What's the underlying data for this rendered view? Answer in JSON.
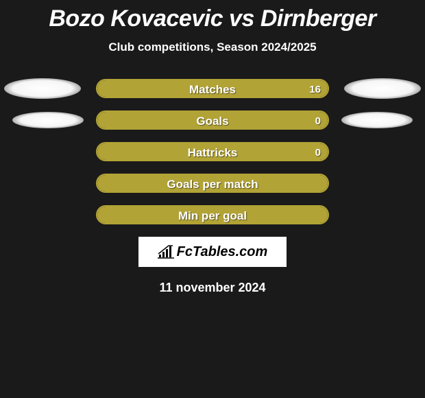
{
  "title": {
    "text": "Bozo Kovacevic vs Dirnberger",
    "color": "#ffffff",
    "fontsize": 34
  },
  "subtitle": {
    "text": "Club competitions, Season 2024/2025",
    "fontsize": 17
  },
  "background_color": "#1a1a1a",
  "bar_fill_color": "#b2a336",
  "bar_border_color": "#b2a336",
  "ellipse_glow_color": "#252525",
  "ellipse": {
    "width_outer": 112,
    "height_outer": 30,
    "width_inner": 104,
    "height_inner": 24
  },
  "rows": [
    {
      "label": "Matches",
      "value_right": "16",
      "fill_pct": 100,
      "show_left_ellipse": true,
      "left_ellipse_size": "outer",
      "show_right_ellipse": true,
      "right_ellipse_size": "outer"
    },
    {
      "label": "Goals",
      "value_right": "0",
      "fill_pct": 100,
      "show_left_ellipse": true,
      "left_ellipse_size": "inner",
      "show_right_ellipse": true,
      "right_ellipse_size": "inner"
    },
    {
      "label": "Hattricks",
      "value_right": "0",
      "fill_pct": 100,
      "show_left_ellipse": false,
      "show_right_ellipse": false
    },
    {
      "label": "Goals per match",
      "value_right": "",
      "fill_pct": 100,
      "show_left_ellipse": false,
      "show_right_ellipse": false
    },
    {
      "label": "Min per goal",
      "value_right": "",
      "fill_pct": 100,
      "show_left_ellipse": false,
      "show_right_ellipse": false
    }
  ],
  "logo": {
    "text": "FcTables.com"
  },
  "date": {
    "text": "11 november 2024"
  }
}
